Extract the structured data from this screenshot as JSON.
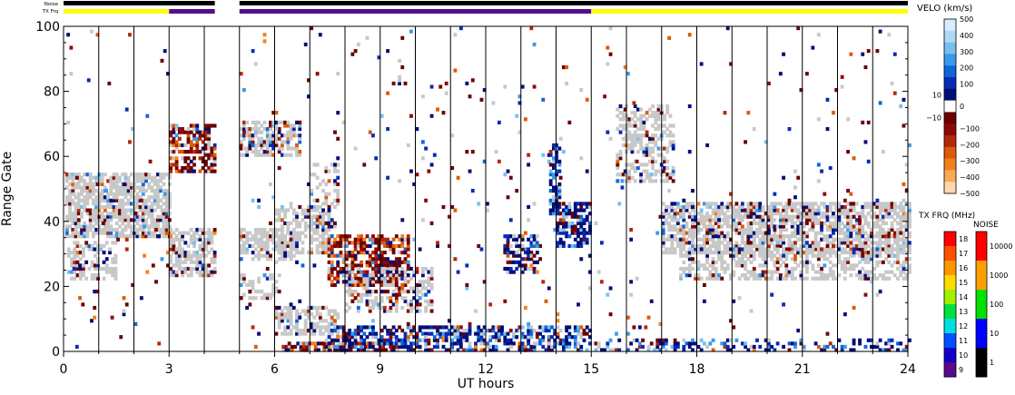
{
  "chart_data": {
    "type": "scatter",
    "subtype": "range-time-intensity",
    "xlabel": "UT hours",
    "ylabel": "Range Gate",
    "xlim": [
      0,
      24
    ],
    "ylim": [
      0,
      100
    ],
    "x_ticks": [
      "0",
      "3",
      "6",
      "9",
      "12",
      "15",
      "18",
      "21",
      "24"
    ],
    "x_tick_values": [
      0,
      3,
      6,
      9,
      12,
      15,
      18,
      21,
      24
    ],
    "y_ticks": [
      "0",
      "20",
      "40",
      "60",
      "80",
      "100"
    ],
    "y_tick_values": [
      0,
      20,
      40,
      60,
      80,
      100
    ],
    "hour_gridlines": true,
    "status_bars": {
      "noise_label": "Noise",
      "txfrq_label": "TX Frq",
      "noise": [
        {
          "start": 0,
          "end": 4.3,
          "color": "#000000"
        },
        {
          "start": 5.0,
          "end": 24,
          "color": "#000000"
        }
      ],
      "txfrq": [
        {
          "start": 0,
          "end": 3.0,
          "color": "#ffff00"
        },
        {
          "start": 3.0,
          "end": 4.3,
          "color": "#5a0a8c"
        },
        {
          "start": 5.0,
          "end": 15.0,
          "color": "#5a0a8c"
        },
        {
          "start": 15.0,
          "end": 24,
          "color": "#ffff00"
        }
      ]
    },
    "scatter_regions": [
      {
        "x0": 0.05,
        "x1": 3.0,
        "y0": 35,
        "y1": 55,
        "density": 0.75,
        "gray": 0.82,
        "vel": 0.5
      },
      {
        "x0": 0.1,
        "x1": 1.5,
        "y0": 22,
        "y1": 34,
        "density": 0.45,
        "gray": 0.8,
        "vel": 0.4
      },
      {
        "x0": 0.0,
        "x1": 3.0,
        "y0": 0,
        "y1": 100,
        "density": 0.015,
        "gray": 0.2,
        "vel": 1.0
      },
      {
        "x0": 3.0,
        "x1": 4.3,
        "y0": 23,
        "y1": 38,
        "density": 0.7,
        "gray": 0.8,
        "vel": 0.5
      },
      {
        "x0": 3.0,
        "x1": 4.3,
        "y0": 55,
        "y1": 70,
        "density": 0.55,
        "gray": 0.1,
        "vel": 0.9,
        "bias": "red"
      },
      {
        "x0": 5.0,
        "x1": 6.5,
        "y0": 28,
        "y1": 38,
        "density": 0.6,
        "gray": 0.85,
        "vel": 0.4
      },
      {
        "x0": 5.0,
        "x1": 6.7,
        "y0": 60,
        "y1": 71,
        "density": 0.6,
        "gray": 0.6,
        "vel": 0.6
      },
      {
        "x0": 5.0,
        "x1": 6.1,
        "y0": 16,
        "y1": 24,
        "density": 0.4,
        "gray": 0.9,
        "vel": 0.3
      },
      {
        "x0": 6.0,
        "x1": 7.5,
        "y0": 30,
        "y1": 45,
        "density": 0.55,
        "gray": 0.85,
        "vel": 0.4
      },
      {
        "x0": 7.0,
        "x1": 7.8,
        "y0": 38,
        "y1": 58,
        "density": 0.35,
        "gray": 0.7,
        "vel": 0.6
      },
      {
        "x0": 6.0,
        "x1": 7.8,
        "y0": 5,
        "y1": 14,
        "density": 0.55,
        "gray": 0.85,
        "vel": 0.4
      },
      {
        "x0": 6.2,
        "x1": 9.5,
        "y0": 0,
        "y1": 3,
        "density": 0.7,
        "gray": 0.1,
        "vel": 0.95,
        "bias": "red"
      },
      {
        "x0": 7.5,
        "x1": 9.8,
        "y0": 20,
        "y1": 36,
        "density": 0.6,
        "gray": 0.05,
        "vel": 0.95,
        "bias": "red"
      },
      {
        "x0": 8.0,
        "x1": 10.5,
        "y0": 12,
        "y1": 26,
        "density": 0.45,
        "gray": 0.6,
        "vel": 0.6
      },
      {
        "x0": 7.5,
        "x1": 15.0,
        "y0": 0,
        "y1": 8,
        "density": 0.55,
        "gray": 0.1,
        "vel": 0.95,
        "bias": "blue"
      },
      {
        "x0": 5.0,
        "x1": 15.0,
        "y0": 0,
        "y1": 100,
        "density": 0.02,
        "gray": 0.2,
        "vel": 1.0
      },
      {
        "x0": 12.5,
        "x1": 13.5,
        "y0": 24,
        "y1": 36,
        "density": 0.5,
        "gray": 0.2,
        "vel": 0.95,
        "bias": "blue"
      },
      {
        "x0": 13.8,
        "x1": 14.1,
        "y0": 42,
        "y1": 64,
        "density": 0.6,
        "gray": 0.1,
        "vel": 0.95,
        "bias": "blue"
      },
      {
        "x0": 14.0,
        "x1": 15.0,
        "y0": 32,
        "y1": 46,
        "density": 0.6,
        "gray": 0.1,
        "vel": 0.95,
        "bias": "blue"
      },
      {
        "x0": 15.0,
        "x1": 24.0,
        "y0": 0,
        "y1": 4,
        "density": 0.3,
        "gray": 0.1,
        "vel": 0.95,
        "bias": "blue"
      },
      {
        "x0": 15.7,
        "x1": 17.3,
        "y0": 52,
        "y1": 76,
        "density": 0.45,
        "gray": 0.8,
        "vel": 0.5
      },
      {
        "x0": 17.0,
        "x1": 24.0,
        "y0": 30,
        "y1": 46,
        "density": 0.7,
        "gray": 0.75,
        "vel": 0.55
      },
      {
        "x0": 17.5,
        "x1": 24.0,
        "y0": 22,
        "y1": 32,
        "density": 0.5,
        "gray": 0.85,
        "vel": 0.4
      },
      {
        "x0": 15.0,
        "x1": 24.0,
        "y0": 0,
        "y1": 100,
        "density": 0.015,
        "gray": 0.2,
        "vel": 1.0
      }
    ],
    "colorbars": {
      "velocity": {
        "title": "VELO (km/s)",
        "ticks": [
          "500",
          "400",
          "300",
          "200",
          "100",
          "10",
          "0",
          "−10",
          "−100",
          "−200",
          "−300",
          "−400",
          "−500"
        ],
        "tick_values": [
          500,
          400,
          300,
          200,
          100,
          10,
          0,
          -10,
          -100,
          -200,
          -300,
          -400,
          -500
        ],
        "colors_top_to_bottom": [
          "#d8ecff",
          "#aed8f6",
          "#78bff0",
          "#3a9ae8",
          "#1066d8",
          "#0a2ab4",
          "#000e78",
          "#ffffff",
          "#6a0000",
          "#8c0a0a",
          "#b4280a",
          "#dc5a0a",
          "#f0821e",
          "#f8aa55",
          "#fcd8aa"
        ]
      },
      "txfrq": {
        "title": "TX FRQ (MHz)",
        "ticks": [
          "18",
          "17",
          "16",
          "15",
          "14",
          "13",
          "12",
          "11",
          "10",
          "9"
        ],
        "colors_top_to_bottom": [
          "#ff0000",
          "#ff5000",
          "#ff9600",
          "#ffdc00",
          "#a0f000",
          "#00e040",
          "#00e0e0",
          "#0050ff",
          "#1400c8",
          "#5a0a8c"
        ]
      },
      "noise": {
        "title": "NOISE",
        "ticks": [
          "10000",
          "1000",
          "100",
          "10",
          "1"
        ],
        "colors_top_to_bottom": [
          "#ff0000",
          "#ffa000",
          "#00e000",
          "#0000ff",
          "#000000"
        ]
      }
    }
  }
}
